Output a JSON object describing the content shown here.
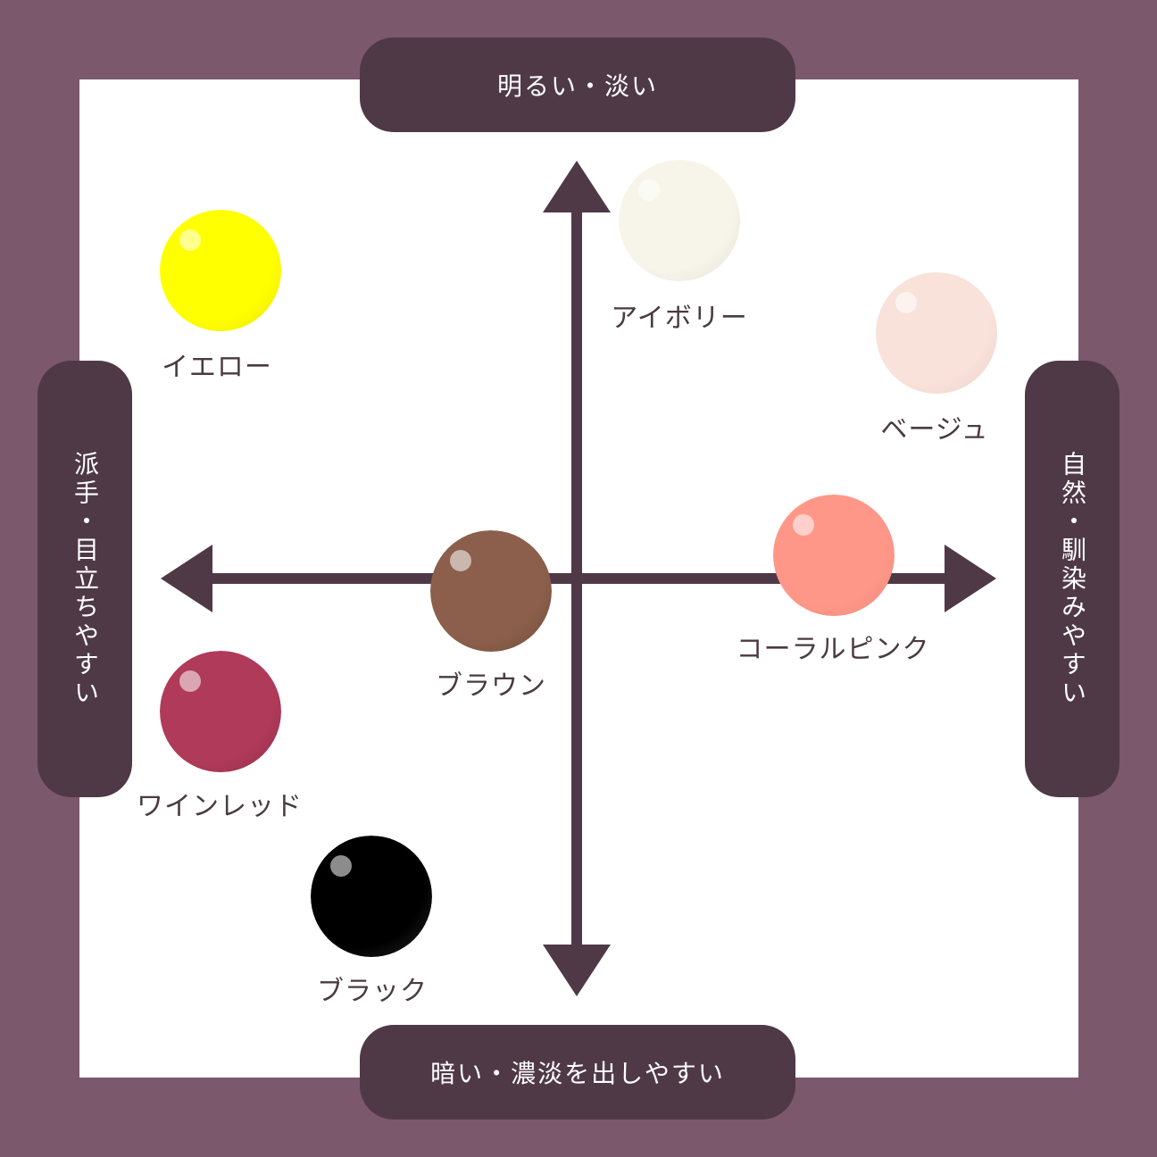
{
  "axes": {
    "top": "明るい・淡い",
    "bottom": "暗い・濃淡を出しやすい",
    "left": "派手・目立ちやすい",
    "right": "自然・馴染みやすい"
  },
  "colors": {
    "axis": "#4f3946",
    "frame": "#7b586c",
    "panel": "#ffffff"
  },
  "items": [
    {
      "label": "イエロー",
      "color": "#ffff00",
      "edge": "#e6e200"
    },
    {
      "label": "アイボリー",
      "color": "#f7f5ea",
      "edge": "#e2dfcf"
    },
    {
      "label": "ベージュ",
      "color": "#f9e2da",
      "edge": "#e8d0c6"
    },
    {
      "label": "コーラルピンク",
      "color": "#ff9788",
      "edge": "#e98a7c"
    },
    {
      "label": "ブラウン",
      "color": "#8b5f4b",
      "edge": "#6f4b3b"
    },
    {
      "label": "ワインレッド",
      "color": "#b03a59",
      "edge": "#8f2f48"
    },
    {
      "label": "ブラック",
      "color": "#000000",
      "edge": "#2c2c2c"
    }
  ]
}
